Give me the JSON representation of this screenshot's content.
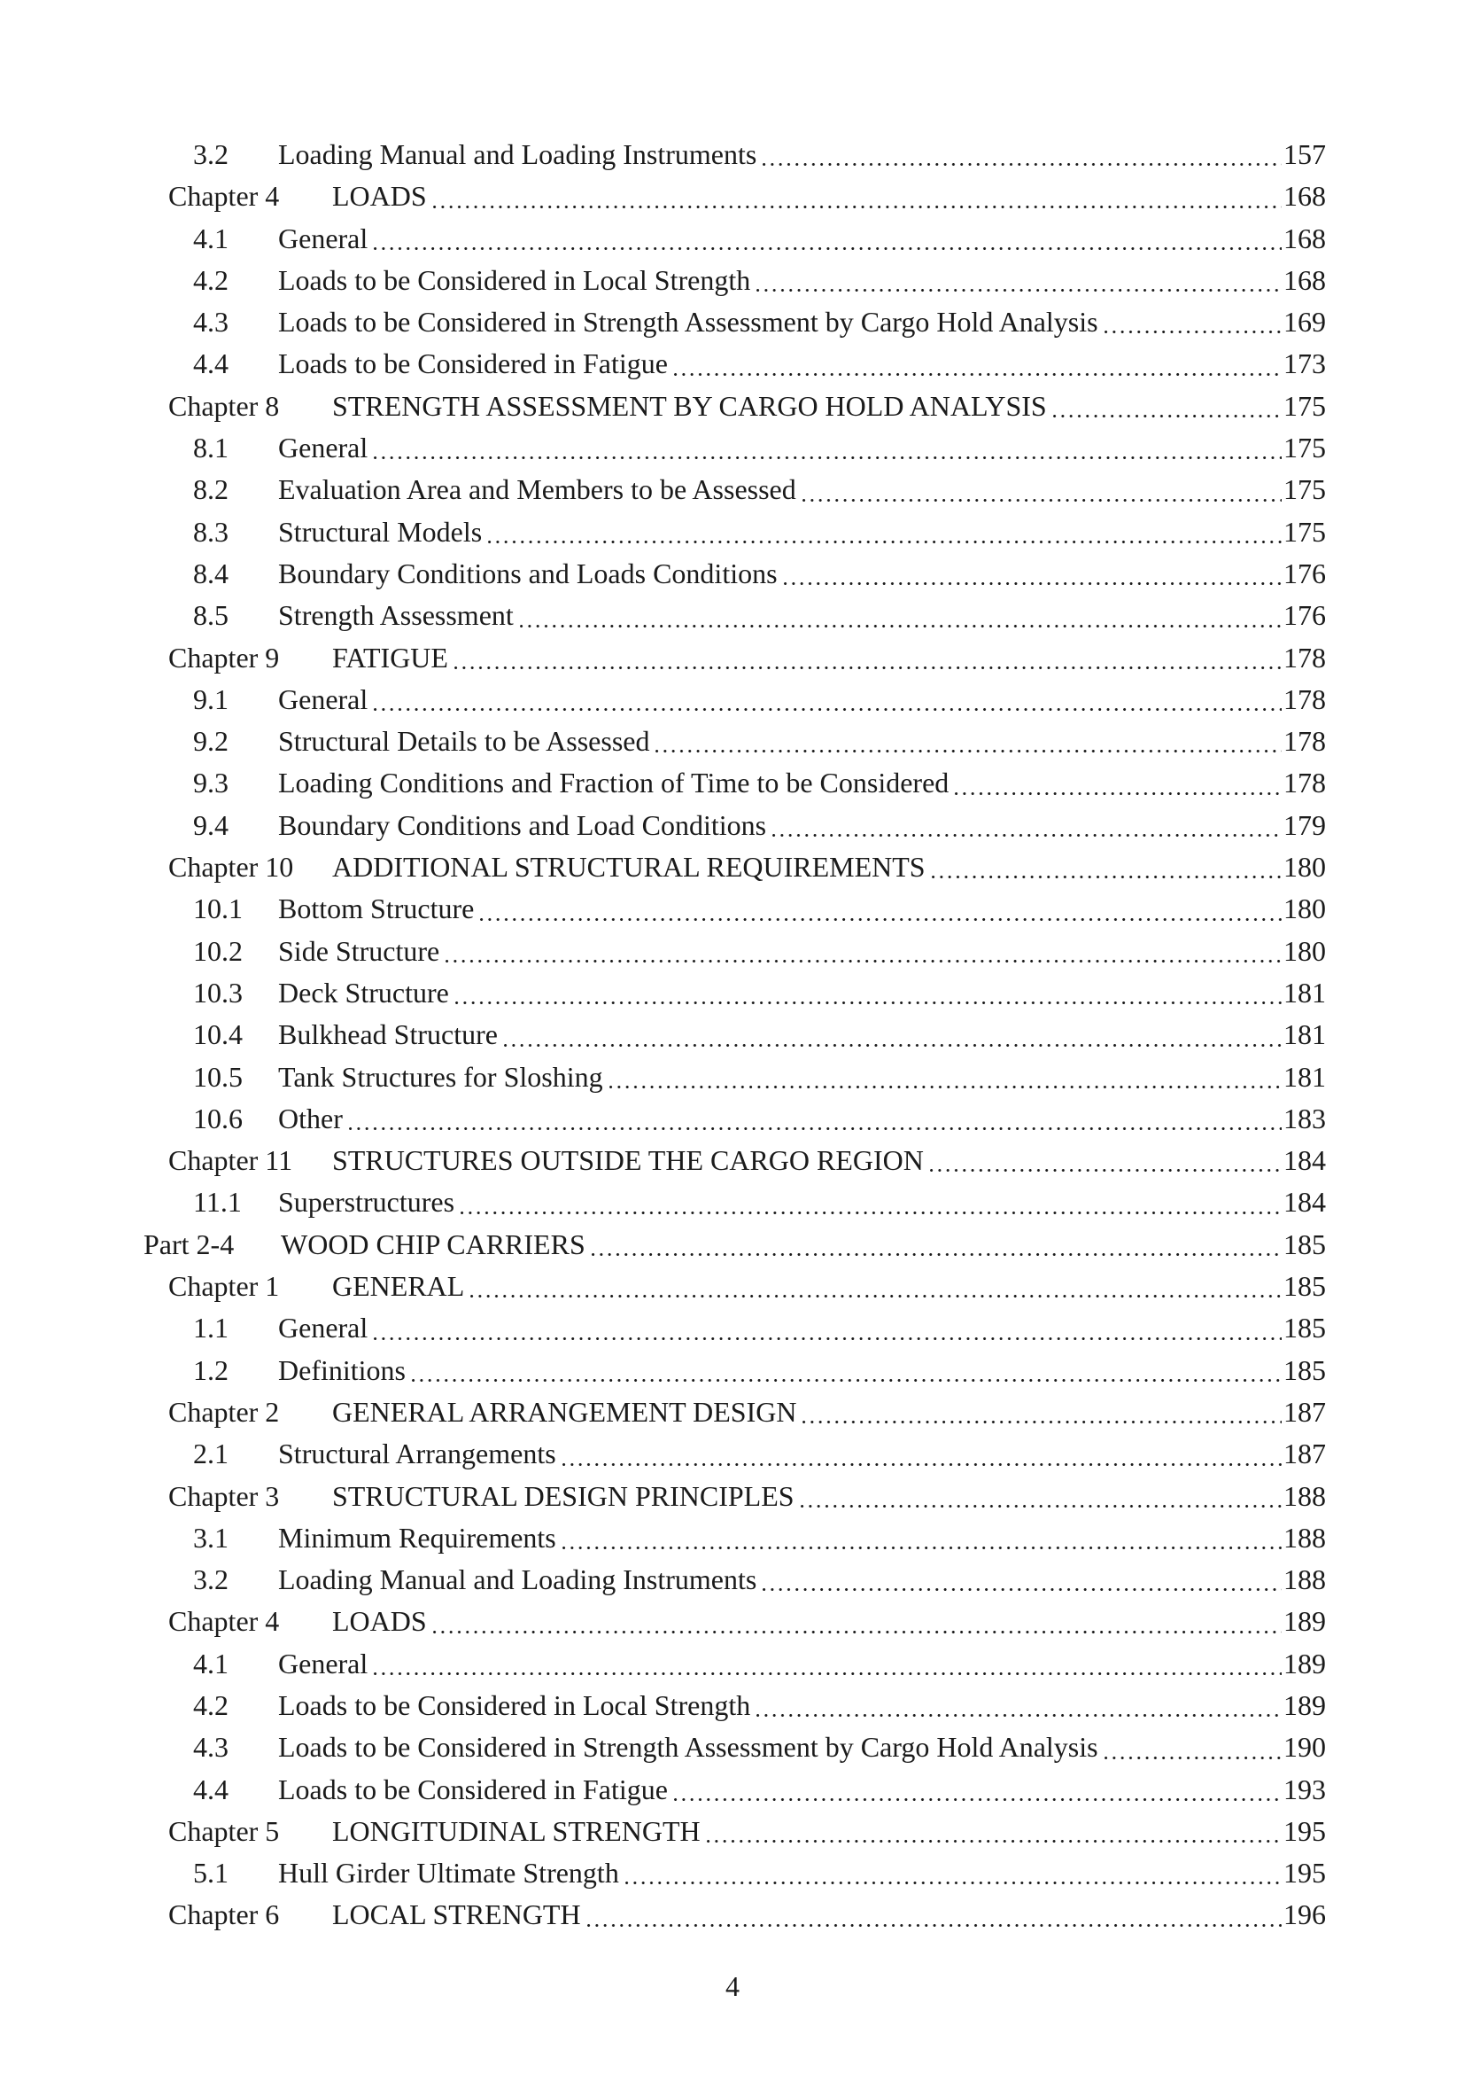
{
  "document": {
    "kind": "table-of-contents-page",
    "footer_page_number": "4"
  },
  "toc_entries": [
    {
      "level": "section",
      "label": "3.2",
      "title": "Loading Manual and Loading Instruments",
      "page": "157"
    },
    {
      "level": "chapter",
      "label": "Chapter 4",
      "title": "LOADS",
      "page": "168"
    },
    {
      "level": "section",
      "label": "4.1",
      "title": "General",
      "page": "168"
    },
    {
      "level": "section",
      "label": "4.2",
      "title": "Loads to be Considered in Local Strength",
      "page": "168"
    },
    {
      "level": "section",
      "label": "4.3",
      "title": "Loads to be Considered in Strength Assessment by Cargo Hold Analysis",
      "page": "169"
    },
    {
      "level": "section",
      "label": "4.4",
      "title": "Loads to be Considered in Fatigue",
      "page": "173"
    },
    {
      "level": "chapter",
      "label": "Chapter 8",
      "title": "STRENGTH ASSESSMENT BY CARGO HOLD ANALYSIS",
      "page": "175"
    },
    {
      "level": "section",
      "label": "8.1",
      "title": "General",
      "page": "175"
    },
    {
      "level": "section",
      "label": "8.2",
      "title": "Evaluation Area and Members to be Assessed",
      "page": "175"
    },
    {
      "level": "section",
      "label": "8.3",
      "title": "Structural Models",
      "page": "175"
    },
    {
      "level": "section",
      "label": "8.4",
      "title": "Boundary Conditions and Loads Conditions",
      "page": "176"
    },
    {
      "level": "section",
      "label": "8.5",
      "title": "Strength Assessment",
      "page": "176"
    },
    {
      "level": "chapter",
      "label": "Chapter 9",
      "title": "FATIGUE",
      "page": "178"
    },
    {
      "level": "section",
      "label": "9.1",
      "title": "General",
      "page": "178"
    },
    {
      "level": "section",
      "label": "9.2",
      "title": "Structural Details to be Assessed",
      "page": "178"
    },
    {
      "level": "section",
      "label": "9.3",
      "title": "Loading Conditions and Fraction of Time to be Considered",
      "page": "178"
    },
    {
      "level": "section",
      "label": "9.4",
      "title": "Boundary Conditions and Load Conditions",
      "page": "179"
    },
    {
      "level": "chapter",
      "label": "Chapter 10",
      "title": "ADDITIONAL STRUCTURAL REQUIREMENTS",
      "page": "180"
    },
    {
      "level": "section",
      "label": "10.1",
      "title": "Bottom Structure",
      "page": "180"
    },
    {
      "level": "section",
      "label": "10.2",
      "title": "Side Structure",
      "page": "180"
    },
    {
      "level": "section",
      "label": "10.3",
      "title": "Deck Structure",
      "page": "181"
    },
    {
      "level": "section",
      "label": "10.4",
      "title": "Bulkhead Structure",
      "page": "181"
    },
    {
      "level": "section",
      "label": "10.5",
      "title": "Tank Structures for Sloshing",
      "page": "181"
    },
    {
      "level": "section",
      "label": "10.6",
      "title": "Other",
      "page": "183"
    },
    {
      "level": "chapter",
      "label": "Chapter 11",
      "title": "STRUCTURES OUTSIDE THE CARGO REGION",
      "page": "184"
    },
    {
      "level": "section",
      "label": "11.1",
      "title": "Superstructures",
      "page": "184"
    },
    {
      "level": "part",
      "label": "Part 2-4",
      "title": "WOOD CHIP CARRIERS",
      "page": "185"
    },
    {
      "level": "chapter",
      "label": "Chapter 1",
      "title": "GENERAL",
      "page": "185"
    },
    {
      "level": "section",
      "label": "1.1",
      "title": "General",
      "page": "185"
    },
    {
      "level": "section",
      "label": "1.2",
      "title": "Definitions",
      "page": "185"
    },
    {
      "level": "chapter",
      "label": "Chapter 2",
      "title": "GENERAL ARRANGEMENT DESIGN",
      "page": "187"
    },
    {
      "level": "section",
      "label": "2.1",
      "title": "Structural Arrangements",
      "page": "187"
    },
    {
      "level": "chapter",
      "label": "Chapter 3",
      "title": "STRUCTURAL DESIGN PRINCIPLES",
      "page": "188"
    },
    {
      "level": "section",
      "label": "3.1",
      "title": "Minimum Requirements",
      "page": "188"
    },
    {
      "level": "section",
      "label": "3.2",
      "title": "Loading Manual and Loading Instruments",
      "page": "188"
    },
    {
      "level": "chapter",
      "label": "Chapter 4",
      "title": "LOADS",
      "page": "189"
    },
    {
      "level": "section",
      "label": "4.1",
      "title": "General",
      "page": "189"
    },
    {
      "level": "section",
      "label": "4.2",
      "title": "Loads to be Considered in Local Strength",
      "page": "189"
    },
    {
      "level": "section",
      "label": "4.3",
      "title": "Loads to be Considered in Strength Assessment by Cargo Hold Analysis",
      "page": "190"
    },
    {
      "level": "section",
      "label": "4.4",
      "title": "Loads to be Considered in Fatigue",
      "page": "193"
    },
    {
      "level": "chapter",
      "label": "Chapter 5",
      "title": "LONGITUDINAL STRENGTH",
      "page": "195"
    },
    {
      "level": "section",
      "label": "5.1",
      "title": "Hull Girder Ultimate Strength",
      "page": "195"
    },
    {
      "level": "chapter",
      "label": "Chapter 6",
      "title": "LOCAL STRENGTH",
      "page": "196"
    }
  ]
}
